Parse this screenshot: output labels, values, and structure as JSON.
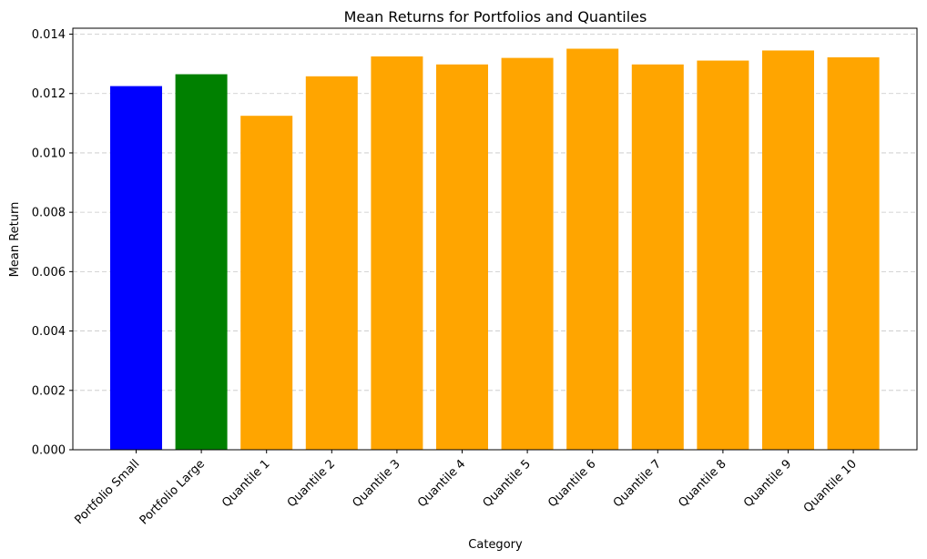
{
  "chart_data": {
    "type": "bar",
    "title": "Mean Returns for Portfolios and Quantiles",
    "xlabel": "Category",
    "ylabel": "Mean Return",
    "categories": [
      "Portfolio Small",
      "Portfolio Large",
      "Quantile 1",
      "Quantile 2",
      "Quantile 3",
      "Quantile 4",
      "Quantile 5",
      "Quantile 6",
      "Quantile 7",
      "Quantile 8",
      "Quantile 9",
      "Quantile 10"
    ],
    "values": [
      0.01225,
      0.01265,
      0.01125,
      0.01258,
      0.01325,
      0.01298,
      0.0132,
      0.01351,
      0.01298,
      0.01311,
      0.01345,
      0.01322
    ],
    "colors": [
      "#0000ff",
      "#008000",
      "#ffa500",
      "#ffa500",
      "#ffa500",
      "#ffa500",
      "#ffa500",
      "#ffa500",
      "#ffa500",
      "#ffa500",
      "#ffa500",
      "#ffa500"
    ],
    "ylim": [
      0,
      0.0142
    ],
    "yticks": [
      "0.000",
      "0.002",
      "0.004",
      "0.006",
      "0.008",
      "0.010",
      "0.012",
      "0.014"
    ],
    "ytick_values": [
      0,
      0.002,
      0.004,
      0.006,
      0.008,
      0.01,
      0.012,
      0.014
    ],
    "grid": "y-dashed",
    "legend": "none"
  }
}
